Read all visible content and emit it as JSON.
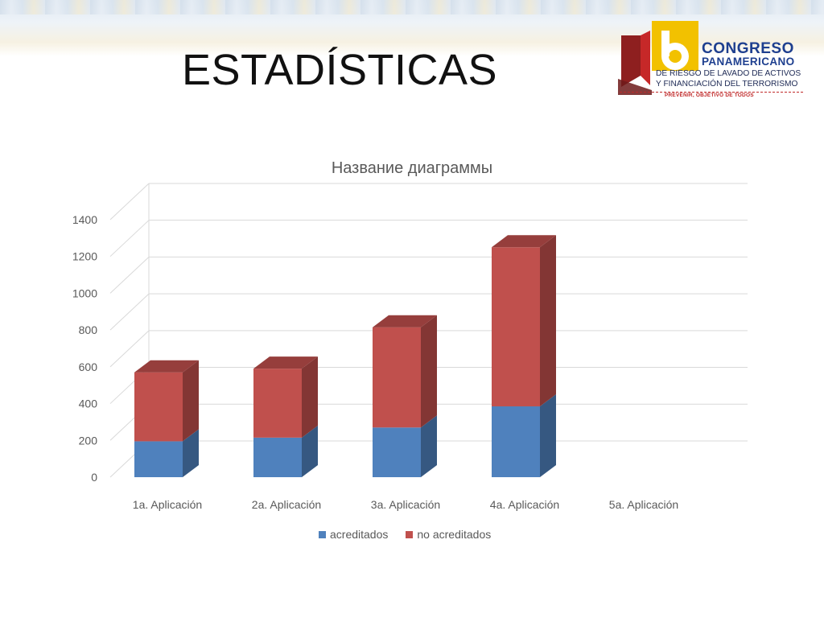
{
  "slide": {
    "title": "ESTADÍSTICAS"
  },
  "logo": {
    "number": "16",
    "line1": "CONGRESO",
    "line2": "PANAMERICANO",
    "line3": "DE RIESGO DE LAVADO DE ACTIVOS",
    "line4": "Y FINANCIACIÓN DEL TERRORISMO",
    "line5": "PREVENIR, OBJETIVO DE TODOS"
  },
  "colors": {
    "acreditados": "#4f81bd",
    "no_acreditados": "#c0504d",
    "gridline": "#d9d9d9",
    "text": "#595959"
  },
  "chart_data": {
    "type": "bar",
    "stacked": true,
    "three_d": true,
    "title": "Название диаграммы",
    "categories": [
      "1a. Aplicación",
      "2a. Aplicación",
      "3a. Aplicación",
      "4a. Aplicación",
      "5a. Aplicación"
    ],
    "series": [
      {
        "name": "acreditados",
        "values": [
          195,
          215,
          270,
          385,
          null
        ]
      },
      {
        "name": "no acreditados",
        "values": [
          375,
          375,
          545,
          865,
          null
        ]
      }
    ],
    "ylim": [
      0,
      1400
    ],
    "yticks": [
      "0",
      "200",
      "400",
      "600",
      "800",
      "1000",
      "1200",
      "1400"
    ],
    "grid": true,
    "legend_position": "bottom"
  }
}
